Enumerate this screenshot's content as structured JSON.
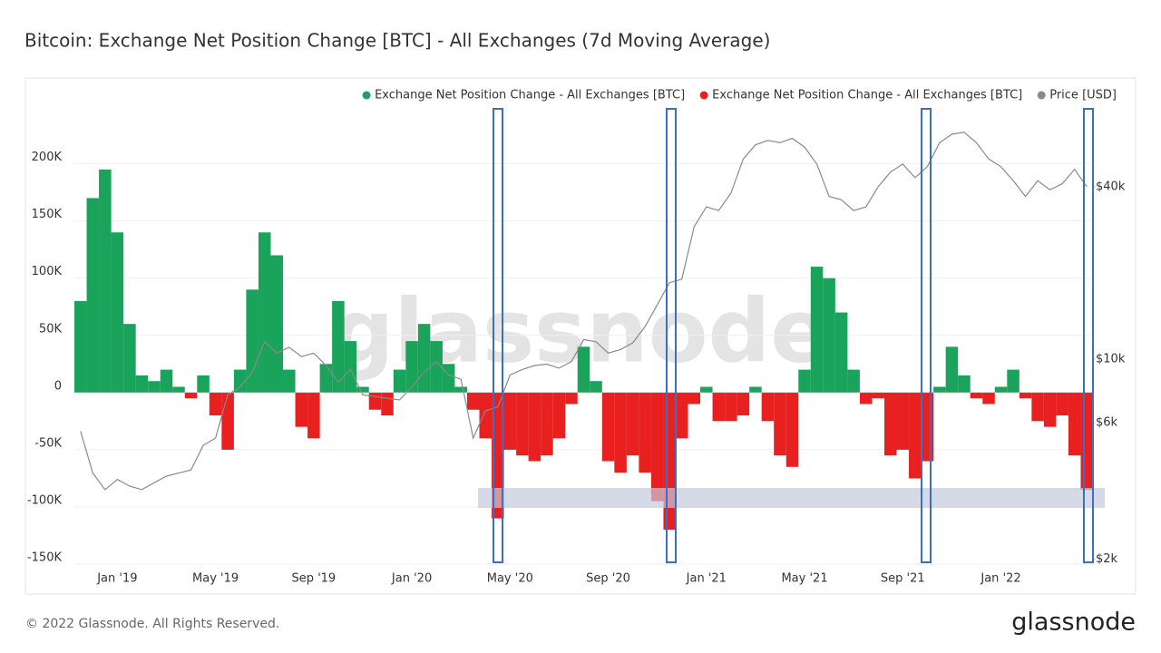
{
  "chart_data": {
    "type": "bar",
    "title": "Bitcoin: Exchange Net Position Change [BTC] - All Exchanges (7d Moving Average)",
    "watermark": "glassnode",
    "categories": [
      null,
      null,
      null,
      "Jan '19",
      null,
      null,
      null,
      null,
      null,
      null,
      null,
      "May '19",
      null,
      null,
      null,
      null,
      null,
      null,
      null,
      "Sep '19",
      null,
      null,
      null,
      null,
      null,
      null,
      null,
      "Jan '20",
      null,
      null,
      null,
      null,
      null,
      null,
      null,
      "May '20",
      null,
      null,
      null,
      null,
      null,
      null,
      null,
      "Sep '20",
      null,
      null,
      null,
      null,
      null,
      null,
      null,
      "Jan '21",
      null,
      null,
      null,
      null,
      null,
      null,
      null,
      "May '21",
      null,
      null,
      null,
      null,
      null,
      null,
      null,
      "Sep '21",
      null,
      null,
      null,
      null,
      null,
      null,
      null,
      "Jan '22",
      null,
      null,
      null,
      null,
      null,
      null,
      null
    ],
    "series": [
      {
        "name": "Exchange Net Position Change - All Exchanges [BTC]",
        "color": "#1aa35a",
        "values": [
          80000,
          170000,
          195000,
          140000,
          60000,
          15000,
          10000,
          20000,
          5000,
          null,
          15000,
          null,
          null,
          20000,
          90000,
          140000,
          120000,
          20000,
          null,
          null,
          25000,
          80000,
          45000,
          5000,
          null,
          null,
          20000,
          45000,
          60000,
          45000,
          25000,
          5000,
          null,
          null,
          null,
          null,
          null,
          null,
          null,
          null,
          null,
          40000,
          10000,
          null,
          null,
          null,
          null,
          null,
          null,
          null,
          null,
          5000,
          null,
          null,
          null,
          5000,
          null,
          null,
          null,
          20000,
          110000,
          100000,
          70000,
          20000,
          null,
          null,
          null,
          null,
          null,
          null,
          5000,
          40000,
          15000,
          null,
          null,
          5000,
          20000,
          null,
          null,
          null,
          null,
          null,
          null
        ]
      },
      {
        "name": "Exchange Net Position Change - All Exchanges [BTC]",
        "color": "#e8201f",
        "values": [
          null,
          null,
          null,
          null,
          null,
          null,
          null,
          null,
          null,
          -5000,
          null,
          -20000,
          -50000,
          null,
          null,
          null,
          null,
          null,
          -30000,
          -40000,
          null,
          null,
          null,
          null,
          -15000,
          -20000,
          null,
          null,
          null,
          null,
          null,
          null,
          -15000,
          -40000,
          -110000,
          -50000,
          -55000,
          -60000,
          -55000,
          -40000,
          -10000,
          null,
          null,
          -60000,
          -70000,
          -55000,
          -70000,
          -95000,
          -120000,
          -40000,
          -10000,
          null,
          -25000,
          -25000,
          -20000,
          null,
          -25000,
          -55000,
          -65000,
          null,
          null,
          null,
          null,
          null,
          -10000,
          -5000,
          -55000,
          -50000,
          -75000,
          -60000,
          null,
          null,
          null,
          -5000,
          -10000,
          null,
          null,
          -5000,
          -25000,
          -30000,
          -20000,
          -55000,
          -85000
        ]
      },
      {
        "name": "Price [USD]",
        "color": "#8a8a8a",
        "axis": "y2",
        "values": [
          5600,
          4000,
          3500,
          3800,
          3600,
          3500,
          3700,
          3900,
          4000,
          4100,
          5000,
          5300,
          7500,
          8000,
          9000,
          11500,
          10500,
          11000,
          10200,
          10500,
          9500,
          8300,
          9200,
          7500,
          7400,
          7300,
          7200,
          8000,
          9000,
          9800,
          8800,
          8500,
          5300,
          6600,
          6800,
          8800,
          9200,
          9500,
          9600,
          9300,
          9800,
          11700,
          11500,
          10500,
          10800,
          11400,
          13000,
          15500,
          18500,
          19000,
          29000,
          34000,
          33000,
          38000,
          50000,
          56000,
          58000,
          57000,
          59000,
          55000,
          48000,
          37000,
          36000,
          33000,
          34000,
          40000,
          45000,
          48000,
          43000,
          47000,
          57000,
          61000,
          62000,
          57000,
          50000,
          47000,
          42000,
          37000,
          42000,
          39000,
          41000,
          46000,
          40000
        ]
      }
    ],
    "ylim": [
      -150000,
      252000
    ],
    "yticks": [
      {
        "value": -150000,
        "label": "-150K"
      },
      {
        "value": -100000,
        "label": "-100K"
      },
      {
        "value": -50000,
        "label": "-50K"
      },
      0,
      {
        "value": 50000,
        "label": "50K"
      },
      {
        "value": 100000,
        "label": "100K"
      },
      {
        "value": 150000,
        "label": "150K"
      },
      {
        "value": 200000,
        "label": "200K"
      }
    ],
    "y2lim": [
      1923,
      77600
    ],
    "y2ticks": [
      {
        "value": 2000,
        "label": "$2k"
      },
      {
        "value": 6000,
        "label": "$6k"
      },
      {
        "value": 10000,
        "label": "$10k"
      },
      {
        "value": 40000,
        "label": "$40k"
      }
    ],
    "y2_log": true,
    "grid": true,
    "legend": "top-right"
  },
  "footer": {
    "copyright": "© 2022 Glassnode. All Rights Reserved.",
    "logo": "glassnode"
  }
}
